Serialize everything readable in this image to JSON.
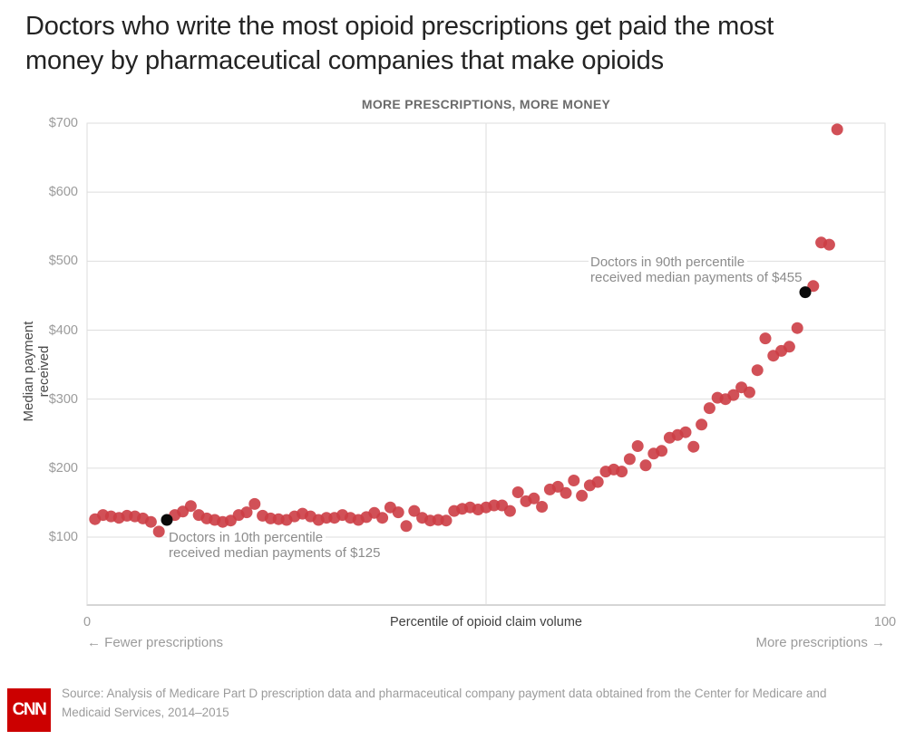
{
  "title": {
    "line1": "Doctors who write the most opioid prescriptions get paid the most",
    "line2": "money by pharmaceutical companies that make opioids"
  },
  "chart_data": {
    "type": "scatter",
    "title": "MORE PRESCRIPTIONS, MORE MONEY",
    "xlabel": "Percentile of opioid claim volume",
    "ylabel": "Median payment received",
    "xlim": [
      0,
      100
    ],
    "ylim": [
      0,
      700
    ],
    "x_ticks": [
      {
        "value": 0,
        "label": "0"
      },
      {
        "value": 100,
        "label": "100"
      }
    ],
    "y_ticks": [
      {
        "value": 100,
        "label": "$100"
      },
      {
        "value": 200,
        "label": "$200"
      },
      {
        "value": 300,
        "label": "$300"
      },
      {
        "value": 400,
        "label": "$400"
      },
      {
        "value": 500,
        "label": "$500"
      },
      {
        "value": 600,
        "label": "$600"
      },
      {
        "value": 700,
        "label": "$700"
      }
    ],
    "x_gridlines": [
      0,
      50,
      100
    ],
    "grid": true,
    "point_color": "#cc3d45",
    "highlight_color": "#0a0a0a",
    "points": [
      [
        1,
        126
      ],
      [
        2,
        132
      ],
      [
        3,
        130
      ],
      [
        4,
        128
      ],
      [
        5,
        131
      ],
      [
        6,
        130
      ],
      [
        7,
        127
      ],
      [
        8,
        122
      ],
      [
        9,
        108
      ],
      [
        10,
        125
      ],
      [
        11,
        132
      ],
      [
        12,
        137
      ],
      [
        13,
        145
      ],
      [
        14,
        132
      ],
      [
        15,
        127
      ],
      [
        16,
        125
      ],
      [
        17,
        122
      ],
      [
        18,
        124
      ],
      [
        19,
        132
      ],
      [
        20,
        136
      ],
      [
        21,
        148
      ],
      [
        22,
        131
      ],
      [
        23,
        127
      ],
      [
        24,
        126
      ],
      [
        25,
        125
      ],
      [
        26,
        130
      ],
      [
        27,
        134
      ],
      [
        28,
        130
      ],
      [
        29,
        125
      ],
      [
        30,
        128
      ],
      [
        31,
        128
      ],
      [
        32,
        132
      ],
      [
        33,
        128
      ],
      [
        34,
        125
      ],
      [
        35,
        129
      ],
      [
        36,
        135
      ],
      [
        37,
        128
      ],
      [
        38,
        143
      ],
      [
        39,
        136
      ],
      [
        40,
        116
      ],
      [
        41,
        138
      ],
      [
        42,
        128
      ],
      [
        43,
        124
      ],
      [
        44,
        125
      ],
      [
        45,
        124
      ],
      [
        46,
        138
      ],
      [
        47,
        141
      ],
      [
        48,
        143
      ],
      [
        49,
        140
      ],
      [
        50,
        143
      ],
      [
        51,
        146
      ],
      [
        52,
        146
      ],
      [
        53,
        138
      ],
      [
        54,
        165
      ],
      [
        55,
        152
      ],
      [
        56,
        156
      ],
      [
        57,
        144
      ],
      [
        58,
        169
      ],
      [
        59,
        173
      ],
      [
        60,
        164
      ],
      [
        61,
        182
      ],
      [
        62,
        160
      ],
      [
        63,
        175
      ],
      [
        64,
        180
      ],
      [
        65,
        195
      ],
      [
        66,
        198
      ],
      [
        67,
        195
      ],
      [
        68,
        213
      ],
      [
        69,
        232
      ],
      [
        70,
        204
      ],
      [
        71,
        221
      ],
      [
        72,
        225
      ],
      [
        73,
        244
      ],
      [
        74,
        248
      ],
      [
        75,
        252
      ],
      [
        76,
        231
      ],
      [
        77,
        263
      ],
      [
        78,
        287
      ],
      [
        79,
        302
      ],
      [
        80,
        300
      ],
      [
        81,
        306
      ],
      [
        82,
        317
      ],
      [
        83,
        310
      ],
      [
        84,
        342
      ],
      [
        85,
        388
      ],
      [
        86,
        363
      ],
      [
        87,
        370
      ],
      [
        88,
        376
      ],
      [
        89,
        403
      ],
      [
        90,
        455
      ],
      [
        91,
        464
      ],
      [
        92,
        527
      ],
      [
        93,
        524
      ],
      [
        94,
        691
      ]
    ],
    "highlighted_points": [
      10,
      90
    ],
    "annotations": {
      "p10": {
        "line1": "Doctors in 10th percentile",
        "line2": "received median payments of $125"
      },
      "p90": {
        "line1": "Doctors in 90th percentile",
        "line2": "received median payments of $455"
      }
    },
    "direction_labels": {
      "fewer": "← Fewer prescriptions",
      "more": "More prescriptions →"
    }
  },
  "footer": {
    "source_line1": "Source: Analysis of Medicare Part D prescription data and pharmaceutical company payment data obtained from the Center for Medicare and",
    "source_line2": "Medicaid Services, 2014–2015",
    "logo_text": "CNN"
  }
}
